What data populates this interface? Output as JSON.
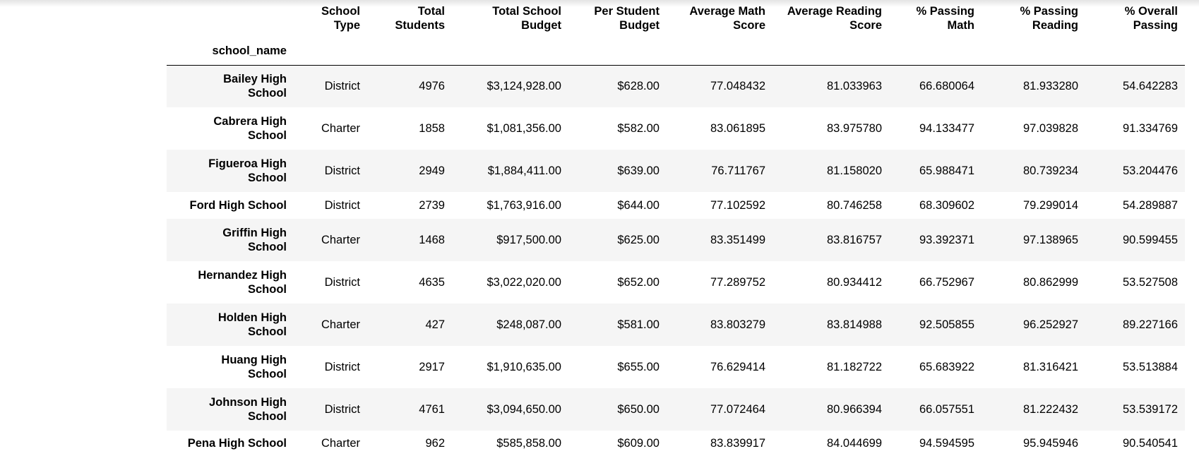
{
  "table": {
    "index_name": "school_name",
    "columns": [
      {
        "line1": "School",
        "line2": "Type"
      },
      {
        "line1": "Total",
        "line2": "Students"
      },
      {
        "line1": "Total School",
        "line2": "Budget"
      },
      {
        "line1": "Per Student",
        "line2": "Budget"
      },
      {
        "line1": "Average Math",
        "line2": "Score"
      },
      {
        "line1": "Average Reading",
        "line2": "Score"
      },
      {
        "line1": "% Passing",
        "line2": "Math"
      },
      {
        "line1": "% Passing",
        "line2": "Reading"
      },
      {
        "line1": "% Overall",
        "line2": "Passing"
      }
    ],
    "rows": [
      {
        "name_line1": "Bailey High",
        "name_line2": "School",
        "cells": [
          "District",
          "4976",
          "$3,124,928.00",
          "$628.00",
          "77.048432",
          "81.033963",
          "66.680064",
          "81.933280",
          "54.642283"
        ]
      },
      {
        "name_line1": "Cabrera High",
        "name_line2": "School",
        "cells": [
          "Charter",
          "1858",
          "$1,081,356.00",
          "$582.00",
          "83.061895",
          "83.975780",
          "94.133477",
          "97.039828",
          "91.334769"
        ]
      },
      {
        "name_line1": "Figueroa High",
        "name_line2": "School",
        "cells": [
          "District",
          "2949",
          "$1,884,411.00",
          "$639.00",
          "76.711767",
          "81.158020",
          "65.988471",
          "80.739234",
          "53.204476"
        ]
      },
      {
        "name_line1": "Ford High School",
        "name_line2": "",
        "cells": [
          "District",
          "2739",
          "$1,763,916.00",
          "$644.00",
          "77.102592",
          "80.746258",
          "68.309602",
          "79.299014",
          "54.289887"
        ]
      },
      {
        "name_line1": "Griffin High",
        "name_line2": "School",
        "cells": [
          "Charter",
          "1468",
          "$917,500.00",
          "$625.00",
          "83.351499",
          "83.816757",
          "93.392371",
          "97.138965",
          "90.599455"
        ]
      },
      {
        "name_line1": "Hernandez High",
        "name_line2": "School",
        "cells": [
          "District",
          "4635",
          "$3,022,020.00",
          "$652.00",
          "77.289752",
          "80.934412",
          "66.752967",
          "80.862999",
          "53.527508"
        ]
      },
      {
        "name_line1": "Holden High",
        "name_line2": "School",
        "cells": [
          "Charter",
          "427",
          "$248,087.00",
          "$581.00",
          "83.803279",
          "83.814988",
          "92.505855",
          "96.252927",
          "89.227166"
        ]
      },
      {
        "name_line1": "Huang High",
        "name_line2": "School",
        "cells": [
          "District",
          "2917",
          "$1,910,635.00",
          "$655.00",
          "76.629414",
          "81.182722",
          "65.683922",
          "81.316421",
          "53.513884"
        ]
      },
      {
        "name_line1": "Johnson High",
        "name_line2": "School",
        "cells": [
          "District",
          "4761",
          "$3,094,650.00",
          "$650.00",
          "77.072464",
          "80.966394",
          "66.057551",
          "81.222432",
          "53.539172"
        ]
      },
      {
        "name_line1": "Pena High School",
        "name_line2": "",
        "cells": [
          "Charter",
          "962",
          "$585,858.00",
          "$609.00",
          "83.839917",
          "84.044699",
          "94.594595",
          "95.945946",
          "90.540541"
        ]
      }
    ]
  }
}
